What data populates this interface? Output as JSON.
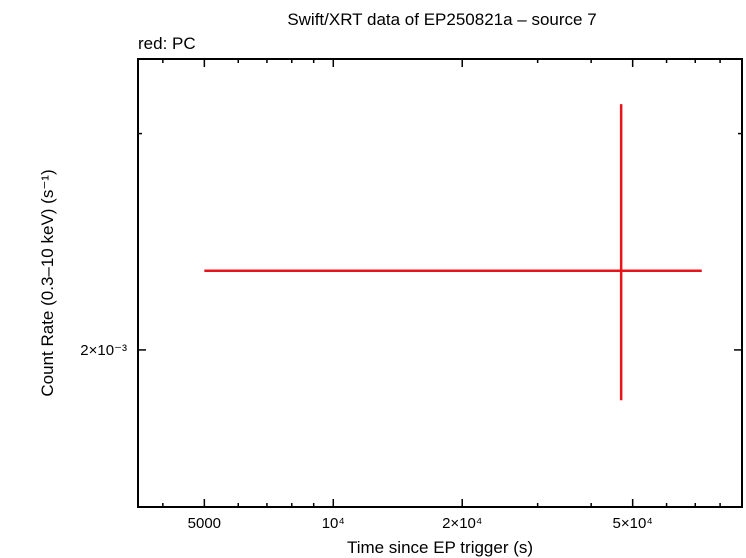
{
  "chart_data": {
    "type": "scatter",
    "title": "Swift/XRT data of EP250821a – source 7",
    "subtitle": "red: PC",
    "xlabel": "Time since EP trigger (s)",
    "ylabel": "Count Rate (0.3–10 keV) (s⁻¹)",
    "x_scale": "log",
    "y_scale": "log",
    "xlim": [
      3500,
      90000
    ],
    "ylim": [
      0.00149,
      0.00345
    ],
    "x_ticks": [
      {
        "value": 5000,
        "label": "5000"
      },
      {
        "value": 10000,
        "label": "10⁴"
      },
      {
        "value": 20000,
        "label": "2×10⁴"
      },
      {
        "value": 50000,
        "label": "5×10⁴"
      }
    ],
    "y_ticks": [
      {
        "value": 0.002,
        "label": "2×10⁻³"
      }
    ],
    "series": [
      {
        "color": "#e8141c",
        "points": [
          {
            "x": 47000,
            "x_lo": 5000,
            "x_hi": 72500,
            "y": 0.00232,
            "y_lo": 0.00182,
            "y_hi": 0.00317
          }
        ]
      }
    ]
  }
}
